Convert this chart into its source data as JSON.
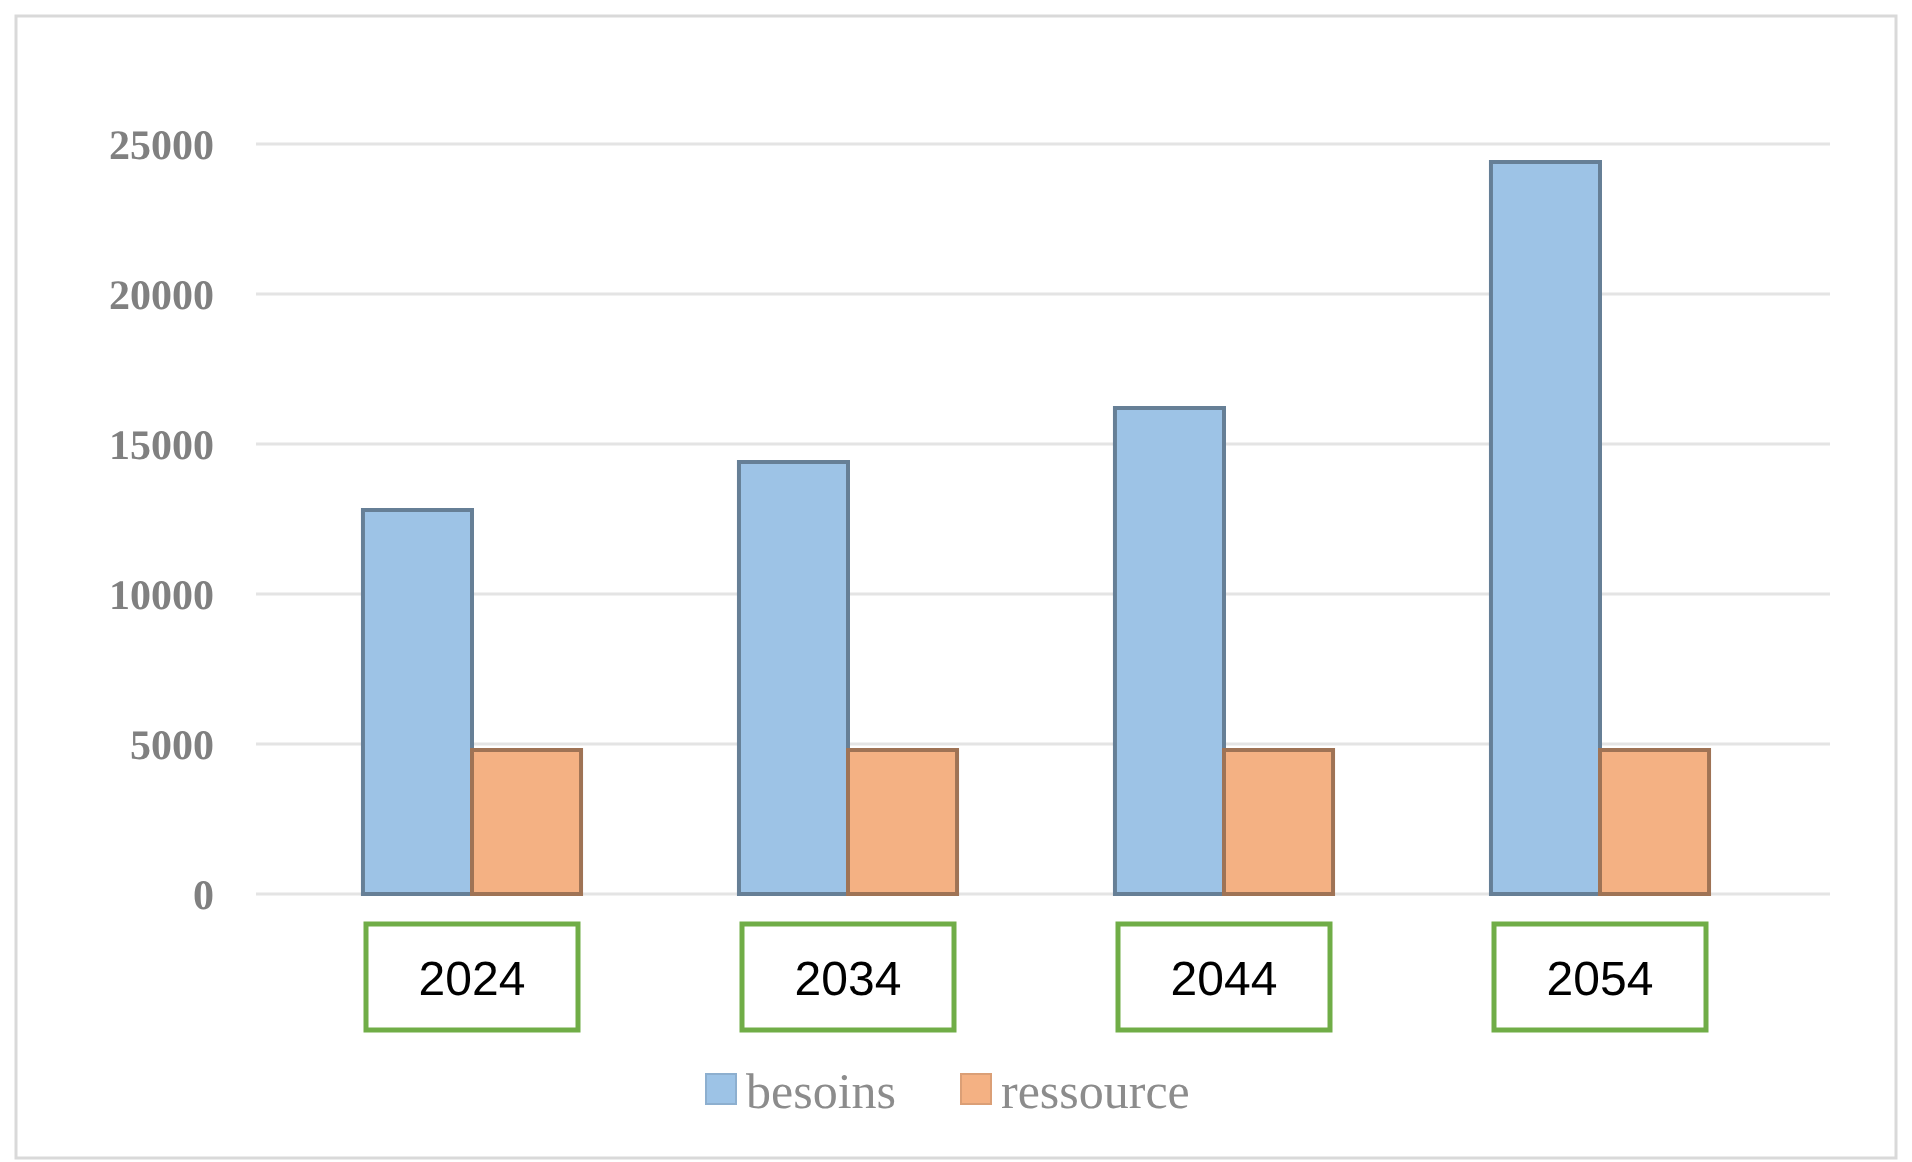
{
  "chart_data": {
    "type": "bar",
    "categories": [
      "2024",
      "2034",
      "2044",
      "2054"
    ],
    "series": [
      {
        "name": "besoins",
        "color": "#9dc3e6",
        "values": [
          12800,
          14400,
          16200,
          24400
        ]
      },
      {
        "name": "ressource",
        "color": "#f4b183",
        "values": [
          4800,
          4800,
          4800,
          4800
        ]
      }
    ],
    "ylim": [
      0,
      25000
    ],
    "yticks": [
      0,
      5000,
      10000,
      15000,
      20000,
      25000
    ],
    "grid": "y",
    "legend": "bottom"
  }
}
